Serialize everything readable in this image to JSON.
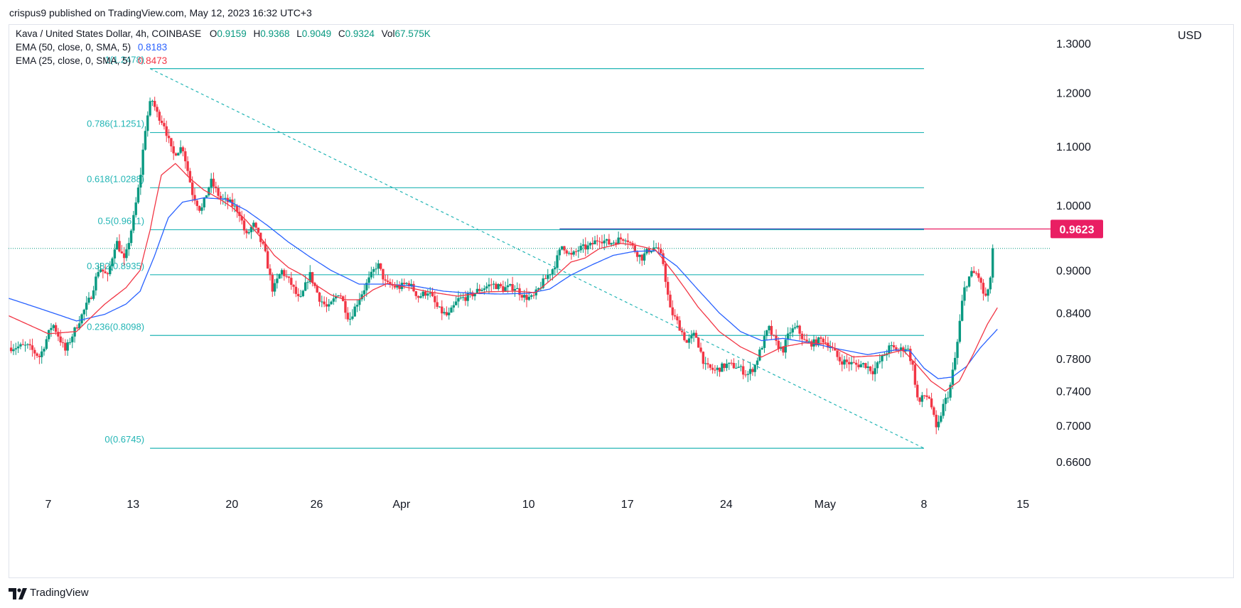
{
  "publisher": "crispus9 published on TradingView.com, May 12, 2023 16:32 UTC+3",
  "legend": {
    "symbol": "Kava / United States Dollar, 4h, COINBASE",
    "o_label": "O",
    "o": "0.9159",
    "h_label": "H",
    "h": "0.9368",
    "l_label": "L",
    "l": "0.9049",
    "c_label": "C",
    "c": "0.9324",
    "vol_label": "Vol",
    "vol": "67.575K",
    "ema50_label": "EMA (50, close, 0, SMA, 5)",
    "ema50": "0.8183",
    "ema25_label": "EMA (25, close, 0, SMA, 5)",
    "ema25": "0.8473"
  },
  "currency": "USD",
  "brand": "TradingView",
  "colors": {
    "up": "#089981",
    "down": "#f23645",
    "ema50": "#2962ff",
    "ema25": "#f23645",
    "fib": "#22b5b5",
    "resistance": "#3f51b5",
    "price_tag": "#e91e63"
  },
  "chart_data": {
    "type": "candlestick",
    "title": "Kava / United States Dollar, 4h, COINBASE",
    "ylim": [
      0.625,
      1.3
    ],
    "y_ticks": [
      0.66,
      0.7,
      0.74,
      0.78,
      0.84,
      0.9,
      1.0,
      1.1,
      1.2,
      1.3
    ],
    "y_tick_labels": [
      "0.6600",
      "0.7000",
      "0.7400",
      "0.7800",
      "0.8400",
      "0.9000",
      "1.0000",
      "1.1000",
      "1.2000",
      "1.3000"
    ],
    "x_ticks": [
      {
        "label": "7",
        "day": 0
      },
      {
        "label": "13",
        "day": 6
      },
      {
        "label": "20",
        "day": 13
      },
      {
        "label": "26",
        "day": 19
      },
      {
        "label": "Apr",
        "day": 25
      },
      {
        "label": "10",
        "day": 34
      },
      {
        "label": "17",
        "day": 41
      },
      {
        "label": "24",
        "day": 48
      },
      {
        "label": "May",
        "day": 55
      },
      {
        "label": "8",
        "day": 62
      },
      {
        "label": "15",
        "day": 69
      }
    ],
    "x_range_days": [
      -2.8,
      69.6
    ],
    "fib_levels": [
      {
        "ratio": "0",
        "price": 0.6745,
        "label": "0(0.6745)"
      },
      {
        "ratio": "0.236",
        "price": 0.8098,
        "label": "0.236(0.8098)"
      },
      {
        "ratio": "0.382",
        "price": 0.8935,
        "label": "0.382(0.8935)"
      },
      {
        "ratio": "0.5",
        "price": 0.9611,
        "label": "0.5(0.9611)"
      },
      {
        "ratio": "0.618",
        "price": 1.0288,
        "label": "0.618(1.0288)"
      },
      {
        "ratio": "0.786",
        "price": 1.1251,
        "label": "0.786(1.1251)"
      },
      {
        "ratio": "1",
        "price": 1.2478,
        "label": "1(1.2478)"
      }
    ],
    "fib_start_day": 7.2,
    "fib_end_day": 62.0,
    "resistance": {
      "price": 0.9623,
      "label": "0.9623",
      "start_day": 36.2,
      "end_day": 69.6
    },
    "current_price": 0.9324,
    "anchors": [
      [
        -2.8,
        0.794
      ],
      [
        -1.5,
        0.796
      ],
      [
        -0.6,
        0.782
      ],
      [
        0.3,
        0.826
      ],
      [
        1.2,
        0.79
      ],
      [
        2.2,
        0.83
      ],
      [
        3.0,
        0.862
      ],
      [
        3.6,
        0.905
      ],
      [
        4.2,
        0.89
      ],
      [
        4.8,
        0.945
      ],
      [
        5.4,
        0.912
      ],
      [
        6.0,
        0.975
      ],
      [
        6.5,
        1.045
      ],
      [
        6.9,
        1.14
      ],
      [
        7.3,
        1.19
      ],
      [
        7.7,
        1.16
      ],
      [
        8.2,
        1.14
      ],
      [
        8.8,
        1.085
      ],
      [
        9.5,
        1.1
      ],
      [
        10.2,
        1.02
      ],
      [
        10.8,
        0.99
      ],
      [
        11.5,
        1.04
      ],
      [
        12.2,
        1.01
      ],
      [
        12.8,
        1.005
      ],
      [
        13.5,
        0.99
      ],
      [
        14.0,
        0.95
      ],
      [
        14.5,
        0.97
      ],
      [
        15.3,
        0.93
      ],
      [
        15.9,
        0.87
      ],
      [
        16.5,
        0.9
      ],
      [
        17.2,
        0.88
      ],
      [
        17.8,
        0.855
      ],
      [
        18.5,
        0.895
      ],
      [
        19.2,
        0.86
      ],
      [
        19.8,
        0.845
      ],
      [
        20.6,
        0.87
      ],
      [
        21.3,
        0.83
      ],
      [
        22.0,
        0.86
      ],
      [
        22.8,
        0.89
      ],
      [
        23.3,
        0.91
      ],
      [
        23.9,
        0.88
      ],
      [
        24.8,
        0.875
      ],
      [
        25.5,
        0.882
      ],
      [
        26.2,
        0.862
      ],
      [
        26.9,
        0.87
      ],
      [
        27.6,
        0.845
      ],
      [
        28.3,
        0.835
      ],
      [
        29.0,
        0.858
      ],
      [
        29.8,
        0.863
      ],
      [
        30.5,
        0.872
      ],
      [
        31.4,
        0.88
      ],
      [
        32.2,
        0.874
      ],
      [
        33.0,
        0.876
      ],
      [
        33.7,
        0.862
      ],
      [
        34.3,
        0.86
      ],
      [
        35.0,
        0.882
      ],
      [
        35.8,
        0.905
      ],
      [
        36.4,
        0.938
      ],
      [
        37.0,
        0.92
      ],
      [
        37.6,
        0.932
      ],
      [
        38.3,
        0.935
      ],
      [
        39.0,
        0.948
      ],
      [
        39.7,
        0.94
      ],
      [
        40.3,
        0.945
      ],
      [
        40.9,
        0.95
      ],
      [
        41.5,
        0.93
      ],
      [
        42.0,
        0.918
      ],
      [
        42.5,
        0.93
      ],
      [
        43.0,
        0.935
      ],
      [
        43.5,
        0.915
      ],
      [
        44.0,
        0.845
      ],
      [
        44.6,
        0.825
      ],
      [
        45.2,
        0.8
      ],
      [
        45.8,
        0.812
      ],
      [
        46.5,
        0.77
      ],
      [
        47.2,
        0.765
      ],
      [
        48.0,
        0.772
      ],
      [
        48.8,
        0.77
      ],
      [
        49.5,
        0.76
      ],
      [
        50.0,
        0.77
      ],
      [
        50.5,
        0.795
      ],
      [
        51.0,
        0.82
      ],
      [
        51.5,
        0.8
      ],
      [
        52.0,
        0.79
      ],
      [
        52.5,
        0.815
      ],
      [
        53.0,
        0.82
      ],
      [
        53.6,
        0.8
      ],
      [
        54.2,
        0.8
      ],
      [
        54.8,
        0.805
      ],
      [
        55.4,
        0.795
      ],
      [
        56.0,
        0.778
      ],
      [
        56.6,
        0.775
      ],
      [
        57.2,
        0.772
      ],
      [
        57.8,
        0.773
      ],
      [
        58.4,
        0.764
      ],
      [
        59.0,
        0.78
      ],
      [
        59.6,
        0.795
      ],
      [
        60.2,
        0.79
      ],
      [
        60.8,
        0.795
      ],
      [
        61.2,
        0.77
      ],
      [
        61.6,
        0.724
      ],
      [
        62.0,
        0.735
      ],
      [
        62.4,
        0.732
      ],
      [
        62.9,
        0.692
      ],
      [
        63.3,
        0.72
      ],
      [
        63.8,
        0.74
      ],
      [
        64.3,
        0.79
      ],
      [
        64.8,
        0.87
      ],
      [
        65.3,
        0.895
      ],
      [
        65.8,
        0.895
      ],
      [
        66.3,
        0.86
      ],
      [
        66.6,
        0.87
      ],
      [
        66.9,
        0.932
      ]
    ],
    "ema25_anchors": [
      [
        -2.8,
        0.836
      ],
      [
        0.0,
        0.812
      ],
      [
        2.0,
        0.815
      ],
      [
        4.0,
        0.852
      ],
      [
        5.5,
        0.875
      ],
      [
        6.5,
        0.9
      ],
      [
        7.2,
        0.96
      ],
      [
        8.0,
        1.05
      ],
      [
        9.0,
        1.07
      ],
      [
        10.0,
        1.045
      ],
      [
        11.0,
        1.025
      ],
      [
        12.0,
        1.012
      ],
      [
        13.0,
        0.997
      ],
      [
        14.0,
        0.976
      ],
      [
        15.0,
        0.95
      ],
      [
        16.0,
        0.922
      ],
      [
        17.0,
        0.904
      ],
      [
        18.0,
        0.893
      ],
      [
        19.0,
        0.878
      ],
      [
        20.0,
        0.865
      ],
      [
        21.0,
        0.858
      ],
      [
        22.0,
        0.858
      ],
      [
        23.0,
        0.872
      ],
      [
        24.0,
        0.881
      ],
      [
        25.0,
        0.877
      ],
      [
        27.0,
        0.869
      ],
      [
        29.0,
        0.863
      ],
      [
        31.0,
        0.869
      ],
      [
        33.0,
        0.87
      ],
      [
        34.5,
        0.868
      ],
      [
        36.0,
        0.893
      ],
      [
        37.0,
        0.912
      ],
      [
        38.0,
        0.918
      ],
      [
        39.0,
        0.932
      ],
      [
        40.5,
        0.94
      ],
      [
        41.5,
        0.938
      ],
      [
        43.0,
        0.93
      ],
      [
        44.5,
        0.89
      ],
      [
        46.0,
        0.848
      ],
      [
        47.5,
        0.815
      ],
      [
        49.0,
        0.795
      ],
      [
        50.5,
        0.782
      ],
      [
        52.0,
        0.795
      ],
      [
        53.5,
        0.8
      ],
      [
        55.0,
        0.799
      ],
      [
        57.0,
        0.782
      ],
      [
        59.0,
        0.784
      ],
      [
        60.5,
        0.791
      ],
      [
        61.5,
        0.772
      ],
      [
        62.5,
        0.752
      ],
      [
        63.5,
        0.74
      ],
      [
        64.5,
        0.752
      ],
      [
        65.5,
        0.786
      ],
      [
        66.5,
        0.825
      ],
      [
        67.2,
        0.847
      ]
    ],
    "ema50_anchors": [
      [
        -2.8,
        0.86
      ],
      [
        0.0,
        0.842
      ],
      [
        2.0,
        0.829
      ],
      [
        4.0,
        0.838
      ],
      [
        5.5,
        0.852
      ],
      [
        6.5,
        0.87
      ],
      [
        7.5,
        0.92
      ],
      [
        8.5,
        0.98
      ],
      [
        9.5,
        1.005
      ],
      [
        11.0,
        1.012
      ],
      [
        12.5,
        1.01
      ],
      [
        14.0,
        0.992
      ],
      [
        15.5,
        0.968
      ],
      [
        17.0,
        0.942
      ],
      [
        18.5,
        0.92
      ],
      [
        20.0,
        0.9
      ],
      [
        22.0,
        0.88
      ],
      [
        24.0,
        0.88
      ],
      [
        26.0,
        0.877
      ],
      [
        28.0,
        0.87
      ],
      [
        30.0,
        0.867
      ],
      [
        32.0,
        0.866
      ],
      [
        34.0,
        0.867
      ],
      [
        35.5,
        0.873
      ],
      [
        37.0,
        0.893
      ],
      [
        38.5,
        0.908
      ],
      [
        40.0,
        0.922
      ],
      [
        41.5,
        0.928
      ],
      [
        43.0,
        0.929
      ],
      [
        44.5,
        0.906
      ],
      [
        46.0,
        0.872
      ],
      [
        47.5,
        0.84
      ],
      [
        49.0,
        0.815
      ],
      [
        50.5,
        0.803
      ],
      [
        52.0,
        0.806
      ],
      [
        54.0,
        0.8
      ],
      [
        56.0,
        0.792
      ],
      [
        58.0,
        0.785
      ],
      [
        60.0,
        0.791
      ],
      [
        61.0,
        0.79
      ],
      [
        62.0,
        0.768
      ],
      [
        63.0,
        0.755
      ],
      [
        64.0,
        0.757
      ],
      [
        65.0,
        0.77
      ],
      [
        66.0,
        0.794
      ],
      [
        67.2,
        0.818
      ]
    ]
  }
}
